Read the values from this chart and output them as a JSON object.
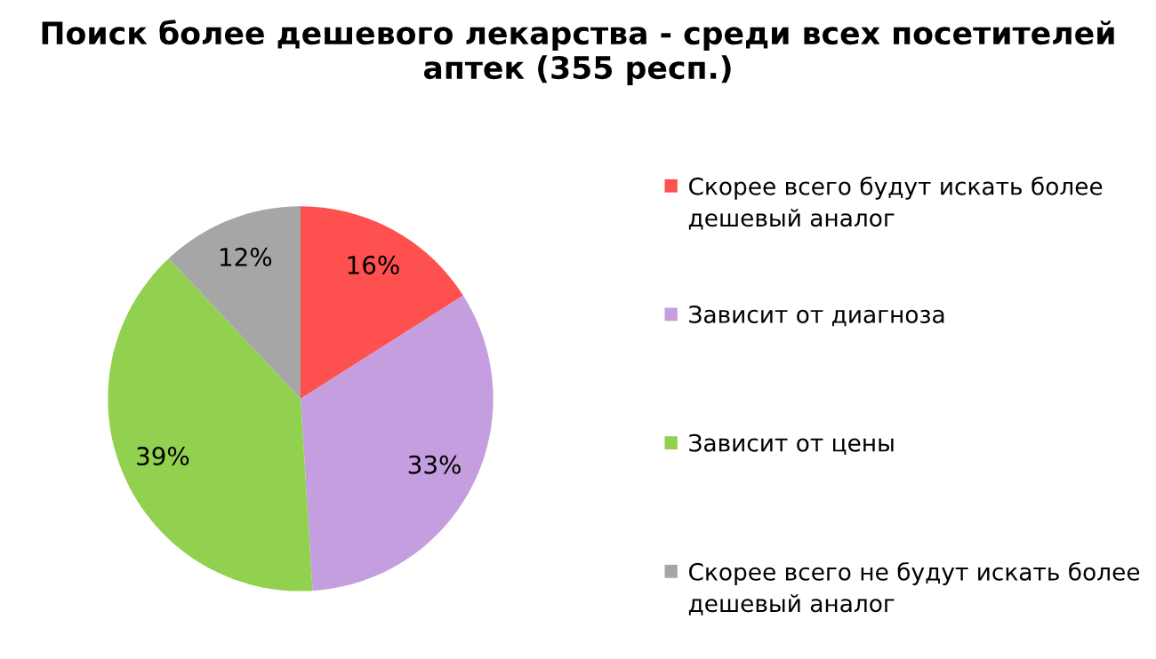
{
  "chart_data": {
    "type": "pie",
    "title": "Поиск более дешевого лекарства - среди всех посетителей аптек (355 респ.)",
    "categories": [
      "Скорее всего будут искать более дешевый аналог",
      "Зависит от диагноза",
      "Зависит от цены",
      "Скорее всего не будут искать более дешевый аналог"
    ],
    "values": [
      16,
      33,
      39,
      12
    ],
    "value_labels": [
      "16%",
      "33%",
      "39%",
      "12%"
    ],
    "colors": [
      "#ff5050",
      "#c59ee0",
      "#92d050",
      "#a6a6a6"
    ],
    "legend": "right"
  }
}
